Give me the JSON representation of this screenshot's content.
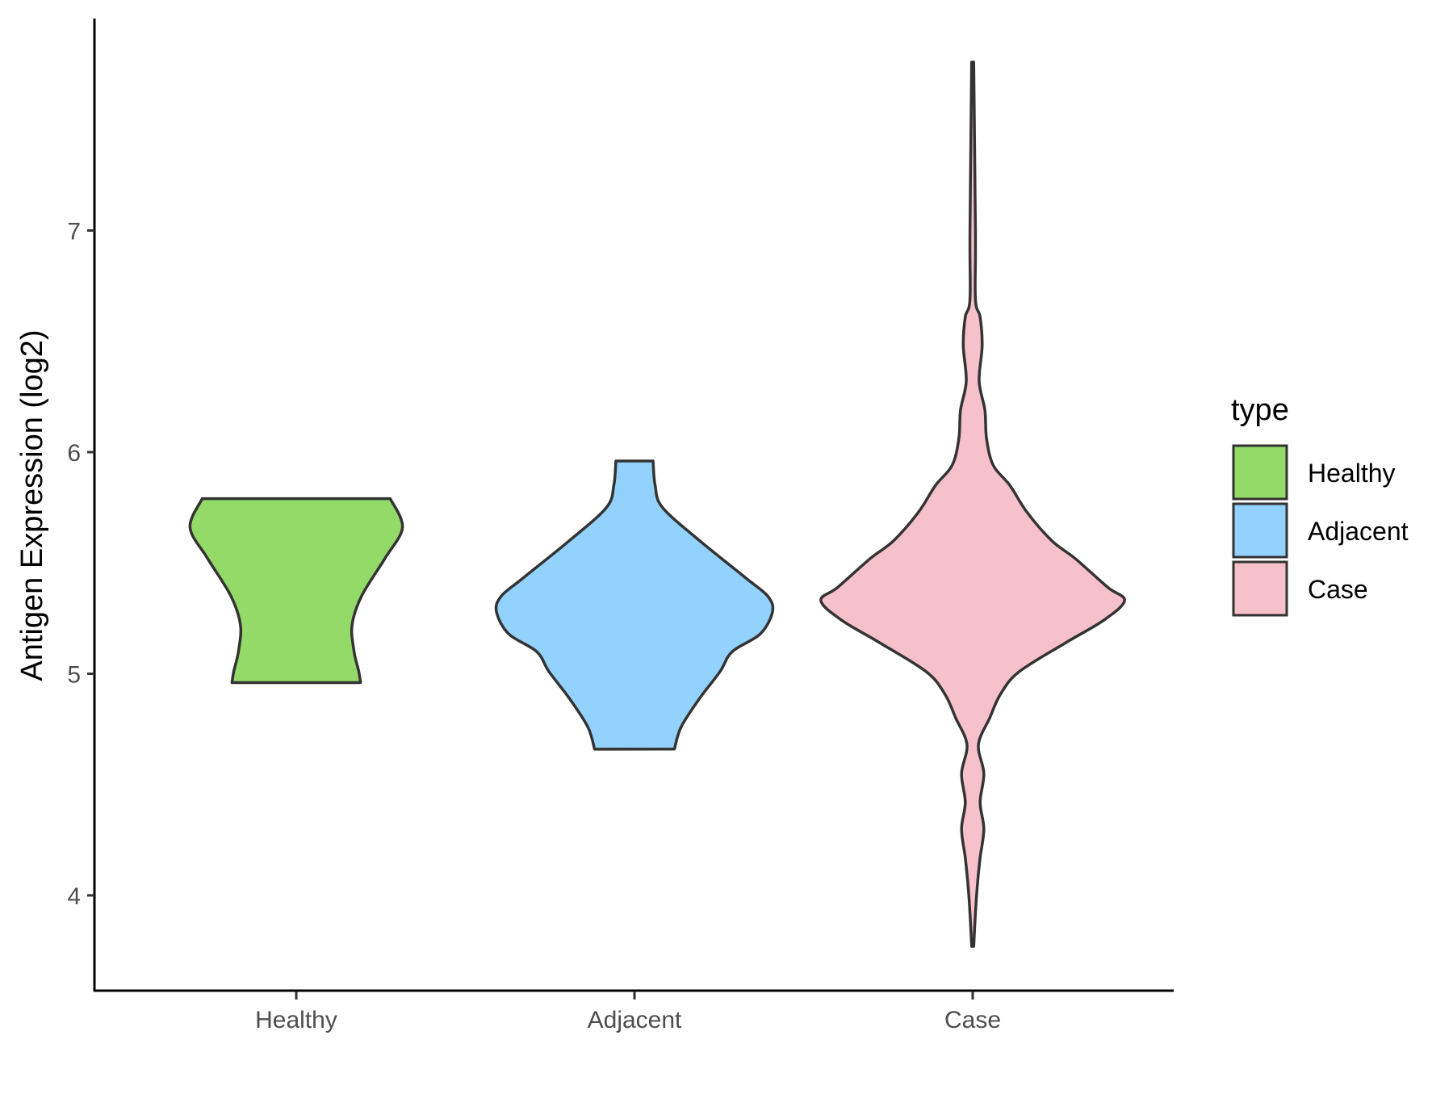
{
  "chart_data": {
    "type": "violin",
    "title": "",
    "xlabel": "",
    "ylabel": "Antigen Expression (log2)",
    "ylim": [
      3.57,
      7.96
    ],
    "yticks": [
      4,
      5,
      6,
      7
    ],
    "categories": [
      "Healthy",
      "Adjacent",
      "Case"
    ],
    "grid": false,
    "legend": {
      "title": "type",
      "position": "right",
      "entries": [
        "Healthy",
        "Adjacent",
        "Case"
      ]
    },
    "colors": {
      "Healthy": "#93DA69",
      "Adjacent": "#92D2FD",
      "Case": "#F7C1CC",
      "outline": "#333333"
    },
    "series": [
      {
        "category": "Healthy",
        "profile": [
          [
            5.79,
            0.278
          ],
          [
            5.66,
            0.314
          ],
          [
            5.52,
            0.262
          ],
          [
            5.35,
            0.193
          ],
          [
            5.22,
            0.165
          ],
          [
            5.1,
            0.171
          ],
          [
            5.01,
            0.185
          ],
          [
            4.96,
            0.19
          ]
        ]
      },
      {
        "category": "Adjacent",
        "profile": [
          [
            5.96,
            0.055
          ],
          [
            5.85,
            0.061
          ],
          [
            5.75,
            0.083
          ],
          [
            5.6,
            0.193
          ],
          [
            5.43,
            0.331
          ],
          [
            5.35,
            0.394
          ],
          [
            5.28,
            0.408
          ],
          [
            5.18,
            0.372
          ],
          [
            5.1,
            0.289
          ],
          [
            5.01,
            0.253
          ],
          [
            4.89,
            0.193
          ],
          [
            4.76,
            0.138
          ],
          [
            4.66,
            0.118
          ]
        ]
      },
      {
        "category": "Case",
        "profile": [
          [
            7.76,
            0.003
          ],
          [
            6.99,
            0.008
          ],
          [
            6.69,
            0.008
          ],
          [
            6.61,
            0.022
          ],
          [
            6.48,
            0.028
          ],
          [
            6.32,
            0.019
          ],
          [
            6.19,
            0.036
          ],
          [
            6.06,
            0.041
          ],
          [
            5.94,
            0.061
          ],
          [
            5.85,
            0.11
          ],
          [
            5.73,
            0.16
          ],
          [
            5.6,
            0.234
          ],
          [
            5.52,
            0.303
          ],
          [
            5.39,
            0.399
          ],
          [
            5.33,
            0.449
          ],
          [
            5.24,
            0.386
          ],
          [
            5.14,
            0.275
          ],
          [
            5.01,
            0.138
          ],
          [
            4.91,
            0.083
          ],
          [
            4.8,
            0.05
          ],
          [
            4.68,
            0.017
          ],
          [
            4.55,
            0.033
          ],
          [
            4.42,
            0.022
          ],
          [
            4.3,
            0.033
          ],
          [
            4.17,
            0.022
          ],
          [
            4.05,
            0.014
          ],
          [
            3.92,
            0.008
          ],
          [
            3.77,
            0.003
          ]
        ]
      }
    ]
  }
}
